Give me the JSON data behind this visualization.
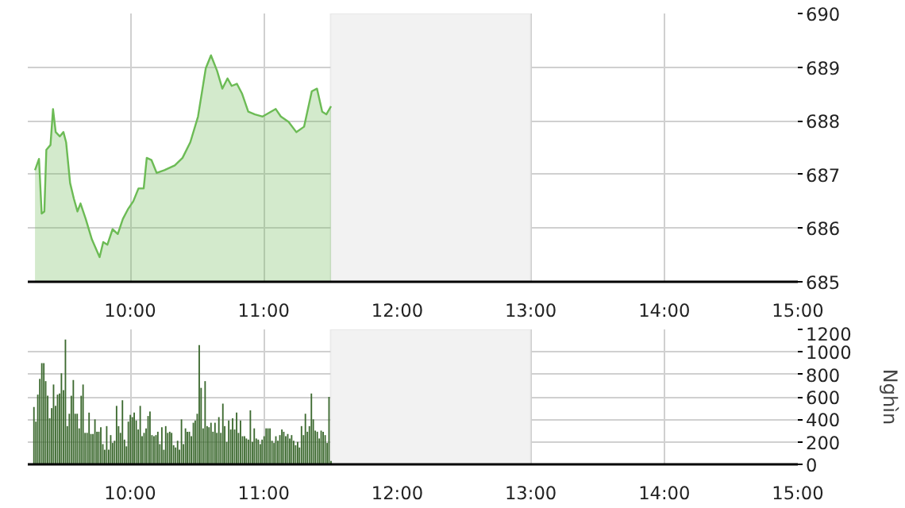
{
  "chart_data": [
    {
      "type": "area",
      "color": "#6cbb55",
      "grid": true,
      "x": [
        9.287,
        9.317,
        9.337,
        9.357,
        9.372,
        9.403,
        9.422,
        9.442,
        9.473,
        9.5,
        9.52,
        9.55,
        9.578,
        9.605,
        9.628,
        9.667,
        9.713,
        9.771,
        9.798,
        9.829,
        9.868,
        9.907,
        9.945,
        9.985,
        10.023,
        10.062,
        10.101,
        10.124,
        10.159,
        10.198,
        10.256,
        10.334,
        10.392,
        10.45,
        10.508,
        10.566,
        10.605,
        10.651,
        10.69,
        10.729,
        10.76,
        10.799,
        10.837,
        10.884,
        10.934,
        10.992,
        11.09,
        11.128,
        11.186,
        11.244,
        11.302,
        11.36,
        11.399,
        11.438,
        11.469,
        11.504
      ],
      "values": [
        687.08,
        687.29,
        686.27,
        686.31,
        687.46,
        687.55,
        688.22,
        687.79,
        687.71,
        687.79,
        687.6,
        686.84,
        686.55,
        686.31,
        686.46,
        686.17,
        685.79,
        685.46,
        685.74,
        685.69,
        685.98,
        685.89,
        686.17,
        686.36,
        686.5,
        686.74,
        686.74,
        687.31,
        687.27,
        687.03,
        687.08,
        687.17,
        687.31,
        687.6,
        688.08,
        688.98,
        689.22,
        688.93,
        688.6,
        688.79,
        688.65,
        688.69,
        688.51,
        688.17,
        688.12,
        688.08,
        688.22,
        688.08,
        687.98,
        687.79,
        687.89,
        688.55,
        688.6,
        688.17,
        688.12,
        688.27
      ],
      "xlim": [
        9.233,
        15
      ],
      "ylim": [
        685,
        690
      ],
      "xticks": [
        {
          "value": 10,
          "label": "10:00"
        },
        {
          "value": 11,
          "label": "11:00"
        },
        {
          "value": 12,
          "label": "12:00"
        },
        {
          "value": 13,
          "label": "13:00"
        },
        {
          "value": 14,
          "label": "14:00"
        },
        {
          "value": 15,
          "label": "15:00"
        }
      ],
      "yticks": [
        685,
        686,
        687,
        688,
        689,
        690
      ],
      "bands": [
        {
          "axis": "x",
          "from": 11.5,
          "to": 13,
          "color": "#f2f2f2"
        }
      ]
    },
    {
      "type": "bar",
      "color": "#3d6a30",
      "grid": true,
      "ylabel": "Nghìn",
      "x": [
        9.279,
        9.294,
        9.308,
        9.323,
        9.338,
        9.353,
        9.367,
        9.382,
        9.397,
        9.412,
        9.426,
        9.441,
        9.456,
        9.471,
        9.485,
        9.5,
        9.515,
        9.529,
        9.544,
        9.559,
        9.574,
        9.588,
        9.603,
        9.618,
        9.633,
        9.647,
        9.662,
        9.677,
        9.692,
        9.706,
        9.721,
        9.736,
        9.751,
        9.765,
        9.78,
        9.795,
        9.809,
        9.824,
        9.839,
        9.854,
        9.868,
        9.883,
        9.898,
        9.913,
        9.927,
        9.942,
        9.957,
        9.972,
        9.986,
        10.001,
        10.016,
        10.03,
        10.045,
        10.06,
        10.075,
        10.089,
        10.104,
        10.119,
        10.134,
        10.148,
        10.163,
        10.178,
        10.193,
        10.207,
        10.222,
        10.237,
        10.252,
        10.266,
        10.281,
        10.296,
        10.31,
        10.325,
        10.34,
        10.355,
        10.369,
        10.384,
        10.399,
        10.414,
        10.428,
        10.443,
        10.458,
        10.473,
        10.487,
        10.502,
        10.517,
        10.531,
        10.546,
        10.561,
        10.576,
        10.59,
        10.605,
        10.62,
        10.635,
        10.649,
        10.664,
        10.679,
        10.694,
        10.708,
        10.723,
        10.738,
        10.753,
        10.767,
        10.782,
        10.797,
        10.811,
        10.826,
        10.841,
        10.856,
        10.87,
        10.885,
        10.9,
        10.915,
        10.929,
        10.944,
        10.959,
        10.974,
        10.988,
        11.003,
        11.018,
        11.032,
        11.047,
        11.062,
        11.077,
        11.091,
        11.106,
        11.121,
        11.136,
        11.15,
        11.165,
        11.18,
        11.195,
        11.209,
        11.224,
        11.239,
        11.254,
        11.268,
        11.283,
        11.298,
        11.312,
        11.327,
        11.342,
        11.357,
        11.371,
        11.386,
        11.401,
        11.416,
        11.43,
        11.445,
        11.46,
        11.475,
        11.489,
        11.504
      ],
      "values": [
        510,
        380,
        620,
        760,
        900,
        900,
        740,
        610,
        410,
        500,
        710,
        520,
        620,
        630,
        810,
        660,
        1110,
        340,
        450,
        610,
        750,
        450,
        450,
        320,
        610,
        710,
        280,
        280,
        460,
        270,
        270,
        400,
        290,
        290,
        330,
        180,
        130,
        340,
        130,
        260,
        190,
        210,
        520,
        340,
        280,
        570,
        220,
        160,
        380,
        440,
        420,
        460,
        390,
        310,
        520,
        250,
        280,
        320,
        430,
        470,
        260,
        250,
        260,
        290,
        180,
        330,
        130,
        340,
        280,
        290,
        280,
        170,
        150,
        210,
        130,
        400,
        180,
        320,
        290,
        290,
        250,
        370,
        390,
        450,
        1060,
        680,
        320,
        740,
        340,
        330,
        370,
        290,
        370,
        280,
        420,
        280,
        540,
        340,
        200,
        390,
        310,
        410,
        310,
        460,
        280,
        390,
        250,
        250,
        230,
        220,
        480,
        200,
        320,
        230,
        220,
        180,
        220,
        250,
        320,
        320,
        320,
        210,
        190,
        250,
        210,
        260,
        310,
        290,
        250,
        270,
        230,
        260,
        210,
        170,
        200,
        150,
        340,
        260,
        450,
        290,
        340,
        630,
        400,
        300,
        290,
        230,
        300,
        290,
        260,
        190,
        600,
        30
      ],
      "xlim": [
        9.233,
        15
      ],
      "ylim": [
        0,
        1200
      ],
      "xticks": [
        {
          "value": 10,
          "label": "10:00"
        },
        {
          "value": 11,
          "label": "11:00"
        },
        {
          "value": 12,
          "label": "12:00"
        },
        {
          "value": 13,
          "label": "13:00"
        },
        {
          "value": 14,
          "label": "14:00"
        },
        {
          "value": 15,
          "label": "15:00"
        }
      ],
      "yticks": [
        0,
        200,
        400,
        600,
        800,
        1000,
        1200
      ],
      "bands": [
        {
          "axis": "x",
          "from": 11.5,
          "to": 13,
          "color": "#f2f2f2"
        }
      ]
    }
  ]
}
